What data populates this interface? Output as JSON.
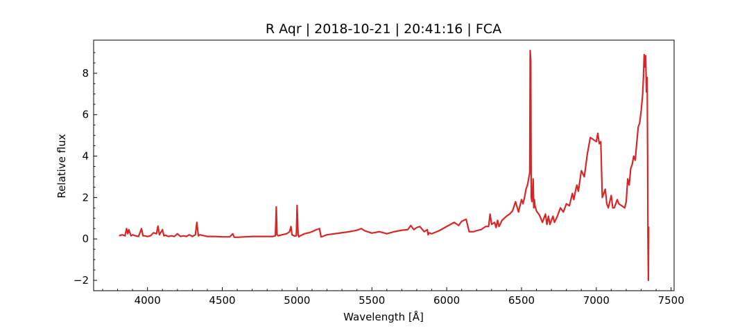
{
  "chart_data": {
    "type": "line",
    "title": "R Aqr | 2018-10-21 | 20:41:16 | FCA",
    "xlabel": "Wavelength [Å]",
    "ylabel": "Relative flux",
    "xlim": [
      3640,
      7520
    ],
    "ylim": [
      -2.5,
      9.6
    ],
    "xticks": [
      4000,
      4500,
      5000,
      5500,
      6000,
      6500,
      7000,
      7500
    ],
    "xtick_labels": [
      "4000",
      "4500",
      "5000",
      "5500",
      "6000",
      "6500",
      "7000",
      "7500"
    ],
    "yticks": [
      -2,
      0,
      2,
      4,
      6,
      8
    ],
    "ytick_labels": [
      "−2",
      "0",
      "2",
      "4",
      "6",
      "8"
    ],
    "grid": false,
    "legend": "none",
    "series": [
      {
        "color": "#d62728",
        "x": [
          3810,
          3830,
          3850,
          3860,
          3868,
          3875,
          3890,
          3900,
          3920,
          3940,
          3960,
          3970,
          3980,
          4000,
          4020,
          4040,
          4060,
          4070,
          4080,
          4100,
          4110,
          4120,
          4140,
          4160,
          4180,
          4200,
          4220,
          4240,
          4260,
          4280,
          4300,
          4320,
          4330,
          4340,
          4350,
          4380,
          4400,
          4450,
          4500,
          4550,
          4570,
          4580,
          4600,
          4650,
          4700,
          4750,
          4800,
          4840,
          4855,
          4861,
          4866,
          4875,
          4900,
          4930,
          4950,
          4959,
          4966,
          4980,
          4995,
          5000,
          5007,
          5012,
          5020,
          5050,
          5080,
          5100,
          5130,
          5150,
          5160,
          5170,
          5180,
          5200,
          5250,
          5300,
          5350,
          5400,
          5430,
          5450,
          5500,
          5550,
          5600,
          5650,
          5700,
          5740,
          5760,
          5780,
          5800,
          5820,
          5850,
          5870,
          5876,
          5882,
          5900,
          5950,
          6000,
          6050,
          6080,
          6100,
          6130,
          6150,
          6180,
          6200,
          6230,
          6260,
          6280,
          6290,
          6300,
          6320,
          6330,
          6340,
          6350,
          6370,
          6400,
          6420,
          6440,
          6460,
          6480,
          6500,
          6510,
          6520,
          6530,
          6540,
          6550,
          6555,
          6558,
          6562,
          6565,
          6570,
          6578,
          6582,
          6586,
          6590,
          6600,
          6620,
          6640,
          6660,
          6670,
          6680,
          6690,
          6700,
          6710,
          6720,
          6740,
          6760,
          6780,
          6800,
          6820,
          6840,
          6850,
          6860,
          6870,
          6880,
          6900,
          6920,
          6940,
          6960,
          6980,
          7000,
          7010,
          7020,
          7030,
          7040,
          7050,
          7060,
          7070,
          7080,
          7090,
          7100,
          7110,
          7120,
          7130,
          7140,
          7150,
          7170,
          7190,
          7200,
          7210,
          7220,
          7230,
          7240,
          7250,
          7260,
          7270,
          7280,
          7290,
          7300,
          7310,
          7315,
          7320,
          7325,
          7330,
          7335,
          7340,
          7343,
          7345,
          7348,
          7350
        ],
        "y": [
          0.15,
          0.2,
          0.15,
          0.5,
          0.25,
          0.45,
          0.15,
          0.2,
          0.15,
          0.12,
          0.5,
          0.15,
          0.15,
          0.12,
          0.15,
          0.3,
          0.25,
          0.62,
          0.2,
          0.45,
          0.15,
          0.18,
          0.12,
          0.15,
          0.12,
          0.25,
          0.12,
          0.15,
          0.12,
          0.2,
          0.12,
          0.2,
          0.8,
          0.15,
          0.2,
          0.15,
          0.12,
          0.12,
          0.1,
          0.1,
          0.25,
          0.08,
          0.08,
          0.1,
          0.12,
          0.12,
          0.12,
          0.12,
          0.15,
          1.55,
          0.2,
          0.15,
          0.2,
          0.25,
          0.35,
          0.6,
          0.2,
          0.15,
          0.15,
          1.62,
          0.2,
          0.1,
          0.15,
          0.25,
          0.3,
          0.35,
          0.45,
          0.5,
          0.1,
          0.12,
          0.15,
          0.2,
          0.25,
          0.3,
          0.35,
          0.42,
          0.5,
          0.4,
          0.28,
          0.35,
          0.25,
          0.35,
          0.42,
          0.45,
          0.65,
          0.45,
          0.55,
          0.6,
          0.35,
          0.45,
          0.2,
          0.3,
          0.25,
          0.4,
          0.6,
          0.8,
          0.65,
          0.85,
          0.95,
          0.35,
          0.35,
          0.4,
          0.45,
          0.6,
          0.6,
          1.2,
          0.7,
          0.8,
          0.55,
          0.9,
          0.6,
          0.9,
          1.1,
          1.2,
          1.35,
          1.8,
          1.3,
          1.9,
          1.7,
          2.0,
          2.4,
          2.6,
          3.0,
          3.2,
          9.1,
          8.6,
          2.0,
          1.8,
          2.9,
          1.5,
          1.9,
          1.6,
          1.35,
          1.15,
          0.8,
          1.2,
          0.7,
          1.1,
          0.7,
          0.9,
          1.1,
          0.8,
          1.1,
          1.5,
          1.3,
          1.7,
          1.6,
          2.2,
          1.9,
          2.3,
          2.6,
          2.3,
          3.3,
          3.0,
          4.1,
          4.9,
          4.8,
          4.7,
          5.1,
          4.6,
          4.7,
          2.0,
          2.2,
          2.4,
          1.7,
          1.5,
          1.8,
          2.1,
          1.5,
          1.5,
          1.7,
          1.9,
          1.7,
          1.6,
          1.5,
          1.8,
          2.9,
          2.6,
          3.4,
          3.6,
          4.0,
          3.8,
          4.6,
          5.4,
          5.6,
          6.2,
          7.0,
          7.8,
          8.9,
          8.3,
          8.85,
          7.1,
          7.8,
          4.0,
          0.2,
          -2.0,
          0.6
        ]
      }
    ]
  }
}
